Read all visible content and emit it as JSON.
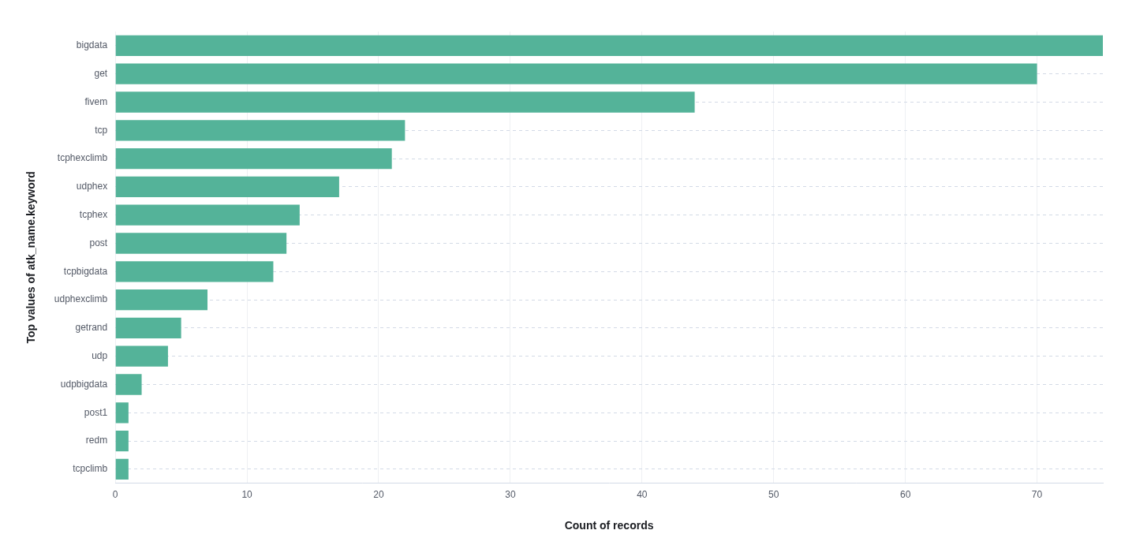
{
  "chart_data": {
    "type": "bar",
    "orientation": "horizontal",
    "x_label": "Count of records",
    "y_label": "Top values of atk_name.keyword",
    "categories": [
      "bigdata",
      "get",
      "fivem",
      "tcp",
      "tcphexclimb",
      "udphex",
      "tcphex",
      "post",
      "tcpbigdata",
      "udphexclimb",
      "getrand",
      "udp",
      "udpbigdata",
      "post1",
      "redm",
      "tcpclimb"
    ],
    "values": [
      75,
      70,
      44,
      22,
      21,
      17,
      14,
      13,
      12,
      7,
      5,
      4,
      2,
      1,
      1,
      1
    ],
    "color": "#54b399",
    "xlim": [
      0,
      75
    ],
    "xticks": [
      0,
      10,
      20,
      30,
      40,
      50,
      60,
      70
    ],
    "grid": true
  }
}
